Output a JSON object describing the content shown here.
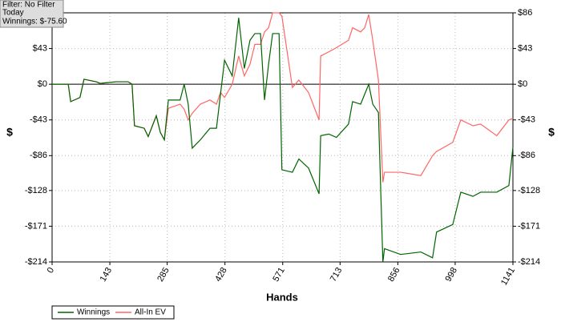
{
  "info_box": {
    "lines": [
      "Filter: No Filter",
      "Today",
      "Winnings: $-75.60"
    ]
  },
  "chart_data": {
    "type": "line",
    "x_label": "Hands",
    "y_label": "$",
    "y2_label": "$",
    "x": [
      0,
      40,
      46,
      69,
      79,
      109,
      119,
      159,
      188,
      198,
      204,
      228,
      238,
      258,
      268,
      278,
      288,
      317,
      327,
      337,
      347,
      367,
      391,
      407,
      417,
      427,
      446,
      462,
      476,
      490,
      502,
      516,
      526,
      536,
      546,
      562,
      569,
      595,
      611,
      635,
      661,
      665,
      685,
      704,
      734,
      744,
      764,
      774,
      784,
      794,
      808,
      819,
      823,
      863,
      913,
      942,
      952,
      992,
      1012,
      1042,
      1061,
      1101,
      1131,
      1141
    ],
    "series": [
      {
        "name": "Winnings",
        "color": "#006400",
        "values": [
          0,
          0,
          -21,
          -16,
          6,
          3,
          1,
          3,
          3,
          0,
          -50,
          -53,
          -63,
          -38,
          -58,
          -67,
          -19,
          -19,
          0,
          -24,
          -77,
          -67,
          -53,
          -53,
          -12,
          29,
          10,
          80,
          19,
          53,
          61,
          61,
          -19,
          24,
          61,
          61,
          -103,
          -106,
          -90,
          -101,
          -132,
          -62,
          -60,
          -64,
          -48,
          -21,
          -24,
          -12,
          0,
          -24,
          -34,
          -214,
          -198,
          -205,
          -202,
          -209,
          -178,
          -169,
          -130,
          -135,
          -130,
          -130,
          -122,
          -75.6
        ]
      },
      {
        "name": "All-In EV",
        "color": "#ff6666",
        "values": [
          0,
          0,
          -21,
          -16,
          6,
          3,
          1,
          3,
          3,
          0,
          -50,
          -53,
          -63,
          -38,
          -58,
          -67,
          -29,
          -24,
          -30,
          -43,
          -35,
          -24,
          -19,
          -24,
          -10,
          -16,
          0,
          34,
          10,
          24,
          48,
          48,
          63,
          68,
          86,
          86,
          82,
          -4,
          5,
          -10,
          -43,
          34,
          39,
          44,
          53,
          68,
          63,
          68,
          84,
          53,
          5,
          -118,
          -106,
          -106,
          -110,
          -86,
          -81,
          -70,
          -43,
          -50,
          -48,
          -62,
          -43,
          -41
        ]
      }
    ],
    "xlim": [
      0,
      1141
    ],
    "xticks": [
      0,
      143,
      285,
      428,
      571,
      713,
      856,
      998,
      1141
    ],
    "ylim": [
      -214,
      86
    ],
    "yticks": [
      {
        "value": 86,
        "label": "$86"
      },
      {
        "value": 43,
        "label": "$43"
      },
      {
        "value": 0,
        "label": "$0"
      },
      {
        "value": -43,
        "label": "-$43"
      },
      {
        "value": -86,
        "label": "-$86"
      },
      {
        "value": -128,
        "label": "-$128"
      },
      {
        "value": -171,
        "label": "-$171"
      },
      {
        "value": -214,
        "label": "-$214"
      }
    ],
    "grid": true,
    "legend": "bottom-left"
  }
}
